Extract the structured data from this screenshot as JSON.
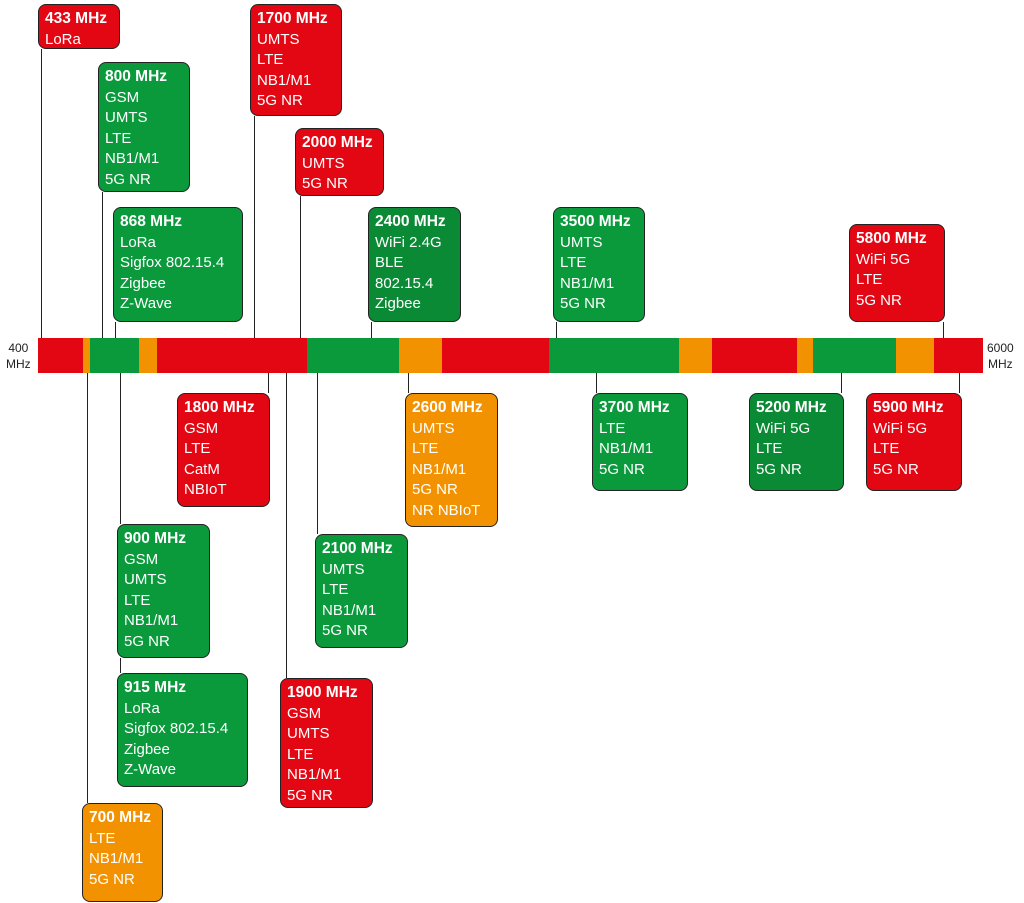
{
  "colors": {
    "red": "#e30613",
    "green": "#0a9a3c",
    "dark_green": "#0b8a35",
    "orange": "#f39200"
  },
  "axis": {
    "start_label": "400",
    "end_label": "6000",
    "unit": "MHz"
  },
  "bar_segments": [
    "red",
    "orange",
    "green",
    "orange",
    "red",
    "green",
    "orange",
    "red",
    "green",
    "orange",
    "red",
    "orange",
    "green",
    "orange",
    "red"
  ],
  "bands": [
    {
      "freq": "433 MHz",
      "color": "red",
      "items": [
        "LoRa"
      ]
    },
    {
      "freq": "800 MHz",
      "color": "green",
      "items": [
        "GSM",
        "UMTS",
        "LTE",
        "NB1/M1",
        "5G NR"
      ]
    },
    {
      "freq": "868 MHz",
      "color": "green",
      "items": [
        "LoRa",
        "Sigfox 802.15.4",
        "Zigbee",
        "Z-Wave"
      ]
    },
    {
      "freq": "1700 MHz",
      "color": "red",
      "items": [
        "UMTS",
        "LTE",
        "NB1/M1",
        "5G NR"
      ]
    },
    {
      "freq": "2000 MHz",
      "color": "red",
      "items": [
        "UMTS",
        "5G NR"
      ]
    },
    {
      "freq": "2400 MHz",
      "color": "dark_green",
      "items": [
        "WiFi 2.4G",
        "BLE",
        "802.15.4",
        "Zigbee"
      ]
    },
    {
      "freq": "3500 MHz",
      "color": "green",
      "items": [
        "UMTS",
        "LTE",
        "NB1/M1",
        "5G NR"
      ]
    },
    {
      "freq": "5800 MHz",
      "color": "red",
      "items": [
        "WiFi 5G",
        "LTE",
        "5G NR"
      ]
    },
    {
      "freq": "1800 MHz",
      "color": "red",
      "items": [
        "GSM",
        "LTE",
        "CatM",
        "NBIoT"
      ]
    },
    {
      "freq": "2600 MHz",
      "color": "orange",
      "items": [
        "UMTS",
        "LTE",
        "NB1/M1",
        "5G NR",
        "NR NBIoT"
      ]
    },
    {
      "freq": "3700 MHz",
      "color": "green",
      "items": [
        "LTE",
        "NB1/M1",
        "5G NR"
      ]
    },
    {
      "freq": "5200 MHz",
      "color": "dark_green",
      "items": [
        "WiFi 5G",
        "LTE",
        "5G NR"
      ]
    },
    {
      "freq": "5900 MHz",
      "color": "red",
      "items": [
        "WiFi 5G",
        "LTE",
        "5G NR"
      ]
    },
    {
      "freq": "900 MHz",
      "color": "green",
      "items": [
        "GSM",
        "UMTS",
        "LTE",
        "NB1/M1",
        "5G NR"
      ]
    },
    {
      "freq": "2100 MHz",
      "color": "green",
      "items": [
        "UMTS",
        "LTE",
        "NB1/M1",
        "5G NR"
      ]
    },
    {
      "freq": "915 MHz",
      "color": "green",
      "items": [
        "LoRa",
        "Sigfox 802.15.4",
        "Zigbee",
        "Z-Wave"
      ]
    },
    {
      "freq": "1900 MHz",
      "color": "red",
      "items": [
        "GSM",
        "UMTS",
        "LTE",
        "NB1/M1",
        "5G NR"
      ]
    },
    {
      "freq": "700 MHz",
      "color": "orange",
      "items": [
        "LTE",
        "NB1/M1",
        "5G NR"
      ]
    }
  ]
}
